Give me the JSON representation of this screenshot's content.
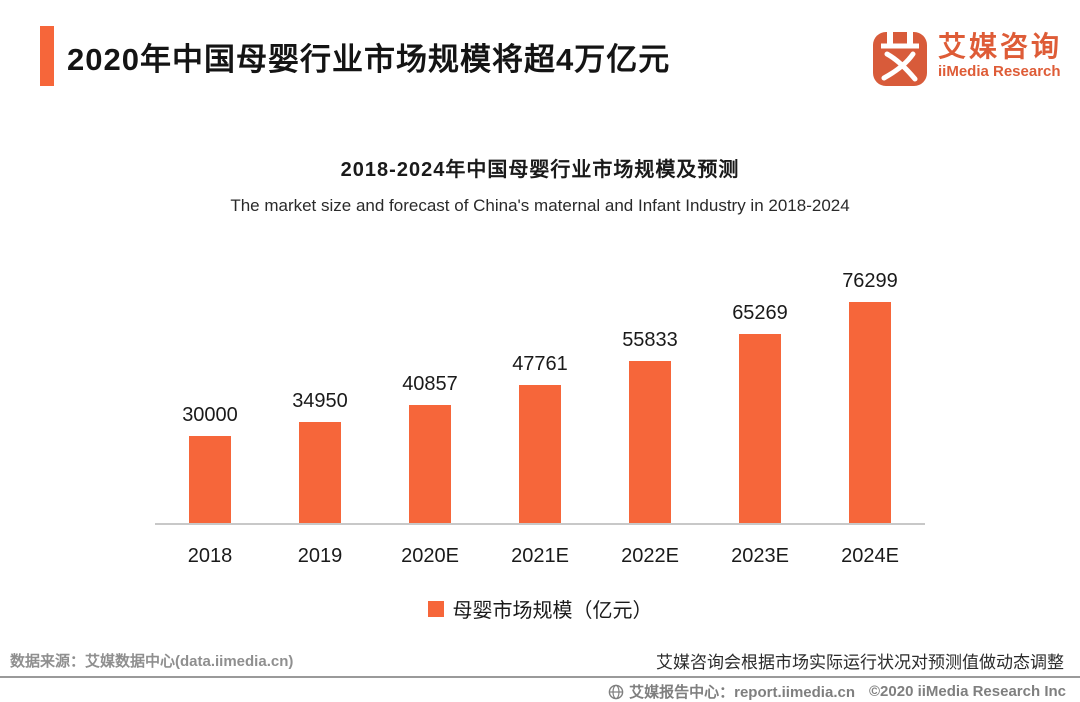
{
  "header": {
    "title": "2020年中国母婴行业市场规模将超4万亿元",
    "logo": {
      "glyph": "艾",
      "brand_cn": "艾媒咨询",
      "brand_en": "iiMedia Research"
    }
  },
  "chart_data": {
    "type": "bar",
    "title": "2018-2024年中国母婴行业市场规模及预测",
    "subtitle": "The market size and forecast of China's maternal and Infant Industry in 2018-2024",
    "categories": [
      "2018",
      "2019",
      "2020E",
      "2021E",
      "2022E",
      "2023E",
      "2024E"
    ],
    "values": [
      30000,
      34950,
      40857,
      47761,
      55833,
      65269,
      76299
    ],
    "legend": [
      "母婴市场规模（亿元）"
    ],
    "xlabel": "",
    "ylabel": "",
    "ylim": [
      0,
      80000
    ],
    "grid": false,
    "data_labels": true,
    "legend_position": "bottom",
    "bar_color": "#f6663a"
  },
  "footer": {
    "source": "数据来源：艾媒数据中心(data.iimedia.cn)",
    "note": "艾媒咨询会根据市场实际运行状况对预测值做动态调整",
    "report_center": "艾媒报告中心：report.iimedia.cn",
    "copyright": "©2020  iiMedia Research Inc"
  },
  "colors": {
    "accent": "#f6663a",
    "logo_mark": "#d85b3a",
    "axis_line": "#c8c8c8",
    "footer_line": "#9a9a9a"
  }
}
